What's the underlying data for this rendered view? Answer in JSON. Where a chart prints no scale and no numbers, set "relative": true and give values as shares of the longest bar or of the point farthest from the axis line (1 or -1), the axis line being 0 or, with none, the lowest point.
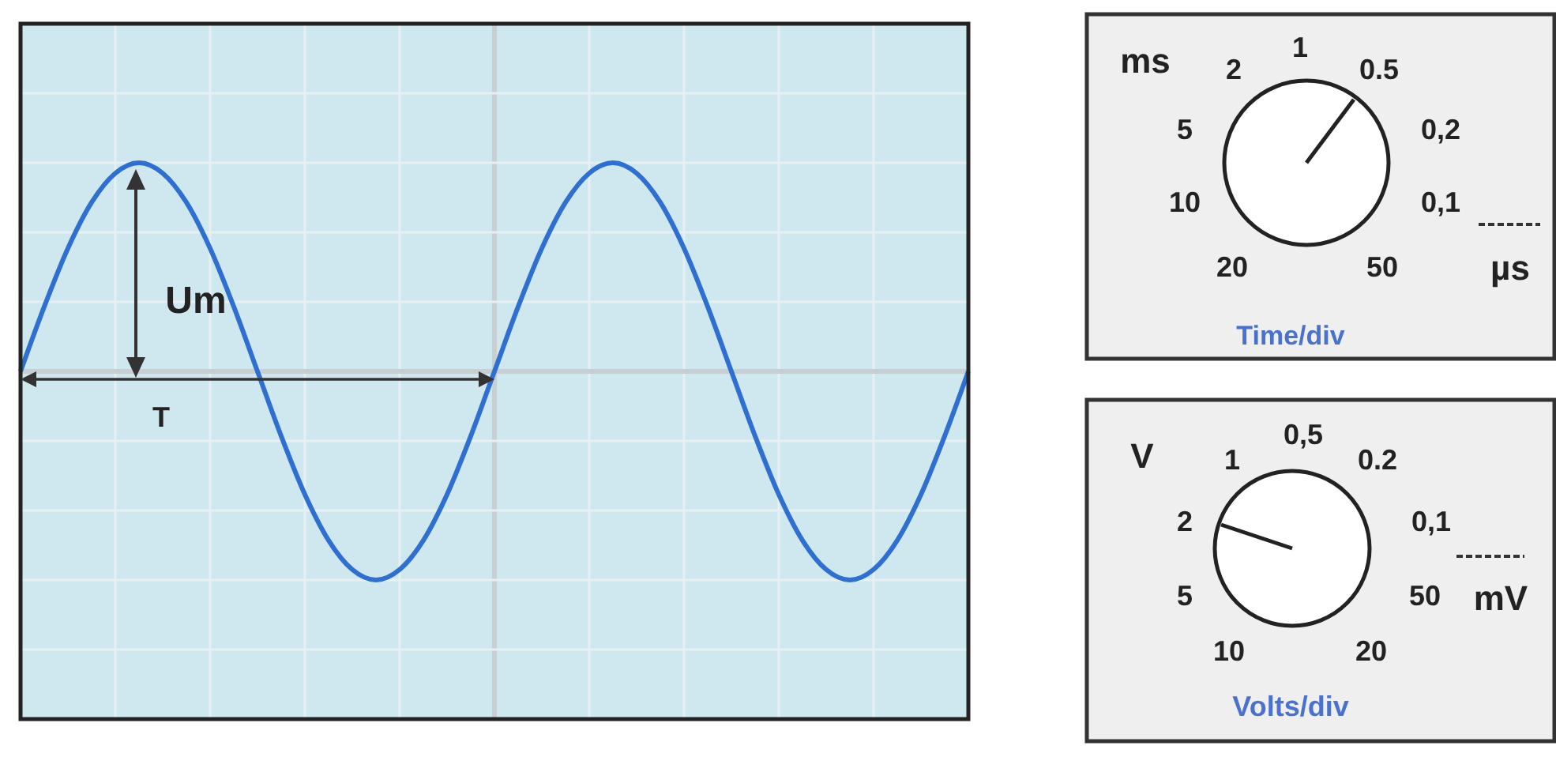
{
  "chart_data": {
    "type": "line",
    "relative": true,
    "grid": true,
    "categories": [
      null,
      null,
      null,
      null,
      null,
      null,
      null,
      null,
      null,
      null,
      null,
      null,
      null,
      null,
      null,
      null,
      null,
      null,
      null,
      null,
      null,
      null,
      null,
      null,
      null,
      null,
      null,
      null,
      null,
      null,
      null,
      null,
      null,
      null,
      null,
      null,
      null,
      null,
      null,
      null,
      null
    ],
    "series": [
      {
        "color": "#2f6fd0",
        "values": [
          0,
          0.31,
          0.59,
          0.81,
          0.95,
          1,
          0.95,
          0.81,
          0.59,
          0.31,
          0,
          -0.31,
          -0.59,
          -0.81,
          -0.95,
          -1,
          -0.95,
          -0.81,
          -0.59,
          -0.31,
          0,
          0.31,
          0.59,
          0.81,
          0.95,
          1,
          0.95,
          0.81,
          0.59,
          0.31,
          0,
          -0.31,
          -0.59,
          -0.81,
          -0.95,
          -1,
          -0.95,
          -0.81,
          -0.59,
          -0.31,
          0
        ]
      }
    ],
    "annotations": [
      "Um",
      "T",
      "ms",
      "2",
      "1",
      "0.5",
      "5",
      "0,2",
      "10",
      "0,1",
      "20",
      "50",
      "µs",
      "Time/div",
      "V",
      "1",
      "0,5",
      "0.2",
      "2",
      "0,1",
      "5",
      "50",
      "mV",
      "10",
      "20",
      "Volts/div"
    ]
  }
}
